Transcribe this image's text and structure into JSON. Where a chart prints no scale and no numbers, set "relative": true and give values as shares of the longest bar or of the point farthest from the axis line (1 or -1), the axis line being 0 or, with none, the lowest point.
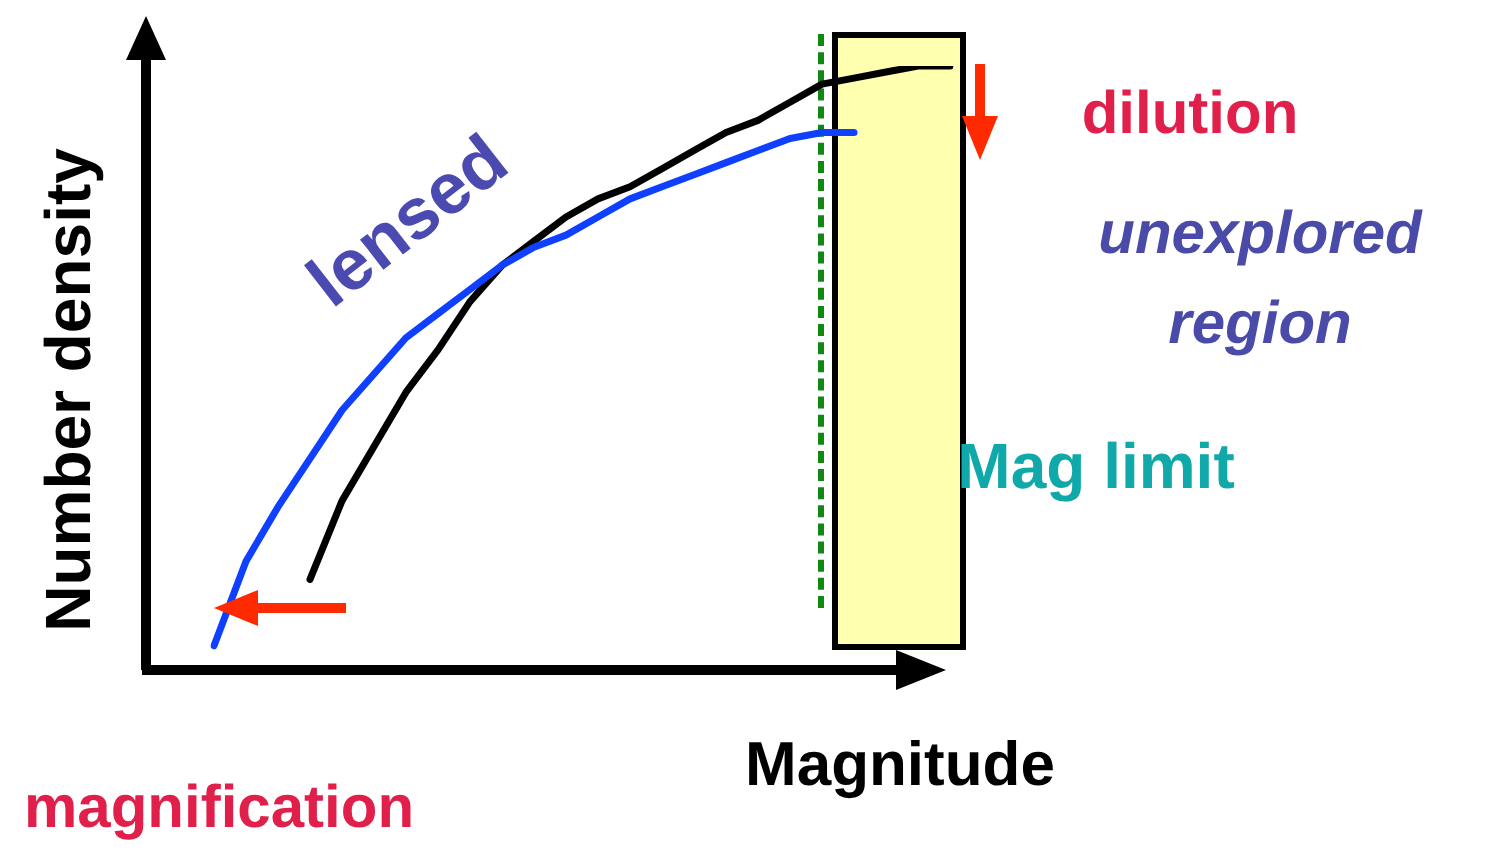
{
  "chart_data": {
    "type": "line",
    "relative": true,
    "xlabel": "Magnitude",
    "ylabel": "Number density",
    "categories": [
      null,
      null,
      null,
      null,
      null,
      null,
      null,
      null,
      null,
      null,
      null,
      null,
      null,
      null,
      null,
      null,
      null,
      null,
      null,
      null,
      null,
      null,
      null,
      null
    ],
    "tick_labels": false,
    "grid": false,
    "legend": false,
    "marker": "none",
    "line_style": "solid",
    "series": [
      {
        "color": "#1040ff",
        "values": [
          0.04,
          0.18,
          0.27,
          0.35,
          0.43,
          0.49,
          0.55,
          0.59,
          0.63,
          0.67,
          0.7,
          0.72,
          0.75,
          0.78,
          0.8,
          0.82,
          0.84,
          0.86,
          0.88,
          0.89,
          0.89,
          null,
          null,
          null
        ]
      },
      {
        "color": "#000000",
        "values": [
          null,
          null,
          null,
          0.15,
          0.28,
          0.37,
          0.46,
          0.53,
          0.61,
          0.67,
          0.71,
          0.75,
          0.78,
          0.8,
          0.83,
          0.86,
          0.89,
          0.91,
          0.94,
          0.97,
          0.98,
          0.99,
          1,
          1
        ]
      }
    ],
    "annotations": [
      "lensed",
      "dilution",
      "unexplored region",
      "Mag limit",
      "magnification"
    ]
  }
}
